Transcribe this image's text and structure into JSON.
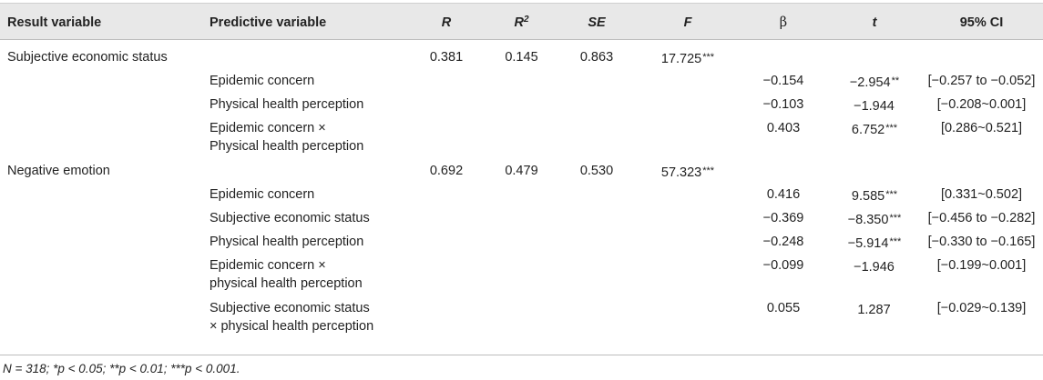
{
  "headers": {
    "result_variable": "Result variable",
    "predictive_variable": "Predictive variable",
    "r": "R",
    "r2_base": "R",
    "r2_sup": "2",
    "se": "SE",
    "f": "F",
    "beta": "β",
    "t": "t",
    "ci": "95% CI"
  },
  "rows": [
    {
      "result": "Subjective economic status",
      "pred1": "",
      "pred2": "",
      "r": "0.381",
      "r2": "0.145",
      "se": "0.863",
      "f": "17.725",
      "f_stars": "***",
      "beta": "",
      "t": "",
      "t_stars": "",
      "ci": ""
    },
    {
      "result": "",
      "pred1": "Epidemic concern",
      "pred2": "",
      "r": "",
      "r2": "",
      "se": "",
      "f": "",
      "f_stars": "",
      "beta": "−0.154",
      "t": "−2.954",
      "t_stars": "**",
      "ci": "[−0.257 to −0.052]"
    },
    {
      "result": "",
      "pred1": "Physical health perception",
      "pred2": "",
      "r": "",
      "r2": "",
      "se": "",
      "f": "",
      "f_stars": "",
      "beta": "−0.103",
      "t": "−1.944",
      "t_stars": "",
      "ci": "[−0.208~0.001]"
    },
    {
      "result": "",
      "pred1": "Epidemic concern ×",
      "pred2": "Physical health perception",
      "r": "",
      "r2": "",
      "se": "",
      "f": "",
      "f_stars": "",
      "beta": "0.403",
      "t": "6.752",
      "t_stars": "***",
      "ci": "[0.286~0.521]"
    },
    {
      "result": "Negative emotion",
      "pred1": "",
      "pred2": "",
      "r": "0.692",
      "r2": "0.479",
      "se": "0.530",
      "f": "57.323",
      "f_stars": "***",
      "beta": "",
      "t": "",
      "t_stars": "",
      "ci": ""
    },
    {
      "result": "",
      "pred1": "Epidemic concern",
      "pred2": "",
      "r": "",
      "r2": "",
      "se": "",
      "f": "",
      "f_stars": "",
      "beta": "0.416",
      "t": "9.585",
      "t_stars": "***",
      "ci": "[0.331~0.502]"
    },
    {
      "result": "",
      "pred1": "Subjective economic status",
      "pred2": "",
      "r": "",
      "r2": "",
      "se": "",
      "f": "",
      "f_stars": "",
      "beta": "−0.369",
      "t": "−8.350",
      "t_stars": "***",
      "ci": "[−0.456 to −0.282]"
    },
    {
      "result": "",
      "pred1": "Physical health perception",
      "pred2": "",
      "r": "",
      "r2": "",
      "se": "",
      "f": "",
      "f_stars": "",
      "beta": "−0.248",
      "t": "−5.914",
      "t_stars": "***",
      "ci": "[−0.330 to −0.165]"
    },
    {
      "result": "",
      "pred1": "Epidemic concern ×",
      "pred2": "physical health perception",
      "r": "",
      "r2": "",
      "se": "",
      "f": "",
      "f_stars": "",
      "beta": "−0.099",
      "t": "−1.946",
      "t_stars": "",
      "ci": "[−0.199~0.001]"
    },
    {
      "result": "",
      "pred1": "Subjective economic status",
      "pred2": "× physical health perception",
      "r": "",
      "r2": "",
      "se": "",
      "f": "",
      "f_stars": "",
      "beta": "0.055",
      "t": "1.287",
      "t_stars": "",
      "ci": "[−0.029~0.139]"
    }
  ],
  "footnote": "N = 318; *p < 0.05; **p < 0.01; ***p < 0.001."
}
